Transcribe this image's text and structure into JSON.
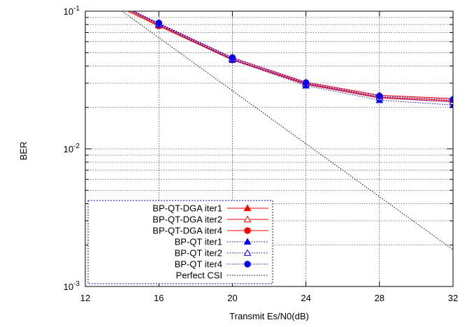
{
  "chart_data": {
    "type": "line",
    "xlabel": "Transmit Es/N0(dB)",
    "ylabel": "BER",
    "xlim": [
      12,
      32
    ],
    "ylim": [
      0.001,
      0.1
    ],
    "yscale": "log",
    "grid": true,
    "legend_position": "bottom-left",
    "x_ticks": [
      "12",
      "16",
      "20",
      "24",
      "28",
      "32"
    ],
    "y_tick_labels": [
      {
        "base": "10",
        "exp": "-3"
      },
      {
        "base": "10",
        "exp": "-2"
      },
      {
        "base": "10",
        "exp": "-1"
      }
    ],
    "series": [
      {
        "name": "BP-QT-DGA iter1",
        "color": "#ff0000",
        "line": "solid",
        "marker": "triangle-filled",
        "x": [
          12,
          16,
          20,
          24,
          28,
          32
        ],
        "y": [
          0.15,
          0.081,
          0.046,
          0.0305,
          0.0245,
          0.0232
        ]
      },
      {
        "name": "BP-QT-DGA iter2",
        "color": "#ff0000",
        "line": "solid",
        "marker": "triangle-open",
        "x": [
          12,
          16,
          20,
          24,
          28,
          32
        ],
        "y": [
          0.145,
          0.079,
          0.0448,
          0.0298,
          0.0238,
          0.0224
        ]
      },
      {
        "name": "BP-QT-DGA iter4",
        "color": "#ff0000",
        "line": "solid",
        "marker": "circle-filled",
        "x": [
          12,
          16,
          20,
          24,
          28,
          32
        ],
        "y": [
          0.14,
          0.078,
          0.0442,
          0.0294,
          0.0234,
          0.022
        ]
      },
      {
        "name": "BP-QT iter1",
        "color": "#0000ff",
        "line": "dotted",
        "marker": "triangle-filled",
        "x": [
          12,
          16,
          20,
          24,
          28,
          32
        ],
        "y": [
          0.148,
          0.08,
          0.0443,
          0.0288,
          0.0226,
          0.0208
        ]
      },
      {
        "name": "BP-QT iter2",
        "color": "#0000ff",
        "line": "dotted",
        "marker": "triangle-open",
        "x": [
          12,
          16,
          20,
          24,
          28,
          32
        ],
        "y": [
          0.146,
          0.0805,
          0.0452,
          0.0297,
          0.0236,
          0.0219
        ]
      },
      {
        "name": "BP-QT iter4",
        "color": "#0000ff",
        "line": "dotted",
        "marker": "circle-filled",
        "x": [
          12,
          16,
          20,
          24,
          28,
          32
        ],
        "y": [
          0.147,
          0.082,
          0.046,
          0.0302,
          0.0242,
          0.0228
        ]
      },
      {
        "name": "Perfect CSI",
        "color": "#000000",
        "line": "dotted",
        "marker": "none",
        "x": [
          14,
          32
        ],
        "y": [
          0.1,
          0.00185
        ]
      }
    ]
  }
}
